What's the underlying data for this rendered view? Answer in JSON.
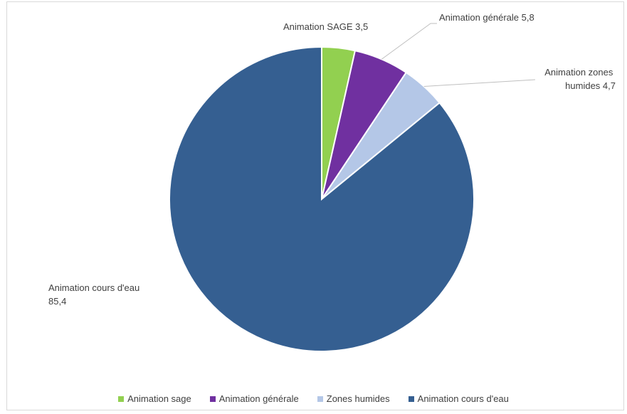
{
  "chart_data": {
    "type": "pie",
    "title": "",
    "start_angle_deg": 0,
    "slices": [
      {
        "legend": "Animation sage",
        "label_name": "Animation SAGE",
        "value": 3.5,
        "value_label": "3,5",
        "color": "#92d050"
      },
      {
        "legend": "Animation générale",
        "label_name": "Animation générale",
        "value": 5.8,
        "value_label": "5,8",
        "color": "#7030a0"
      },
      {
        "legend": "Zones humides",
        "label_name": "Animation zones humides",
        "label_line1": "Animation zones",
        "label_line2": "humides 4,7",
        "value": 4.7,
        "value_label": "4,7",
        "color": "#b4c7e7"
      },
      {
        "legend": "Animation cours d'eau",
        "label_name": "Animation cours d'eau",
        "label_line1": "Animation cours d'eau",
        "label_line2": "85,4",
        "value": 85.4,
        "value_label": "85,4",
        "color": "#355f91"
      }
    ],
    "legend_position": "bottom"
  }
}
